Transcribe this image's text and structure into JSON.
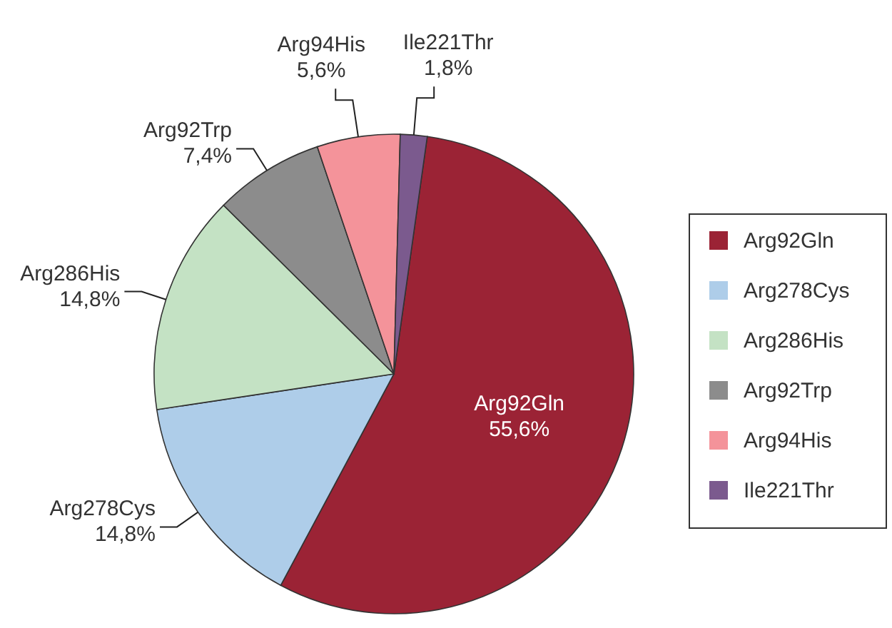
{
  "chart_data": {
    "type": "pie",
    "categories": [
      "Arg92Gln",
      "Arg278Cys",
      "Arg286His",
      "Arg92Trp",
      "Arg94His",
      "Ile221Thr"
    ],
    "values": [
      55.6,
      14.8,
      14.8,
      7.4,
      5.6,
      1.8
    ],
    "value_labels": [
      "55,6%",
      "14,8%",
      "14,8%",
      "7,4%",
      "5,6%",
      "1,8%"
    ],
    "colors": [
      "#9b2335",
      "#aecde9",
      "#c4e2c4",
      "#8c8c8c",
      "#f4939a",
      "#7b5a8e"
    ],
    "legend": "right"
  }
}
